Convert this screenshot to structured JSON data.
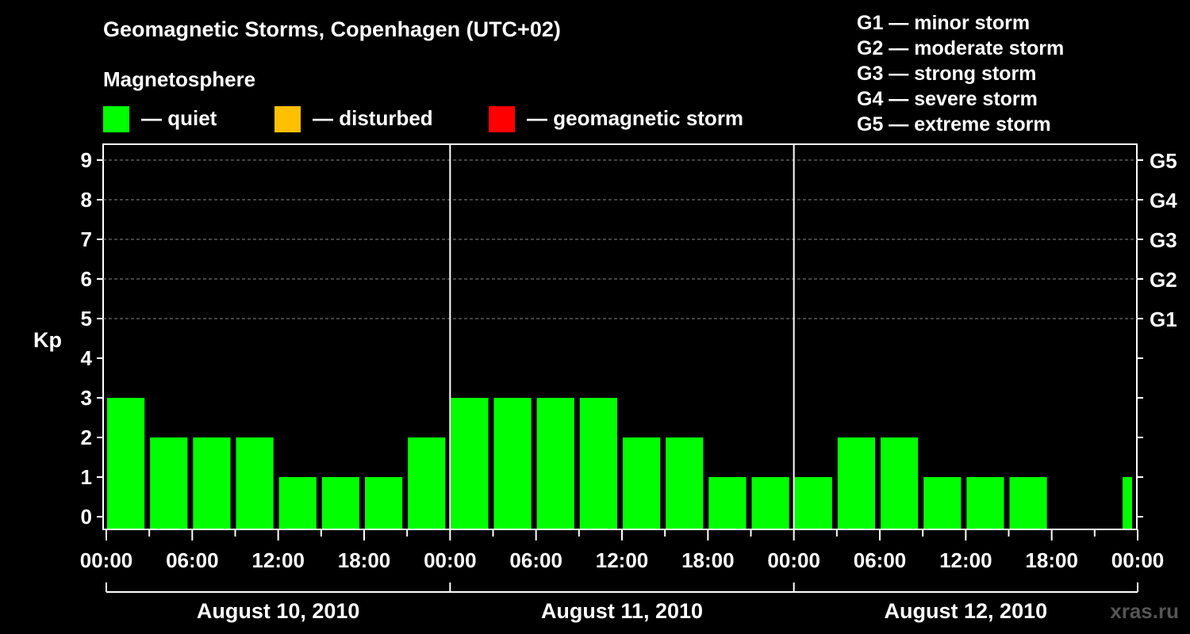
{
  "chart_data": {
    "type": "bar",
    "title": "Geomagnetic Storms, Copenhagen (UTC+02)",
    "ylabel": "Kp",
    "ylim": [
      0,
      9
    ],
    "y_ticks": [
      "0",
      "1",
      "2",
      "3",
      "4",
      "5",
      "6",
      "7",
      "8",
      "9"
    ],
    "g_ticks": [
      {
        "kp": 5,
        "label": "G1"
      },
      {
        "kp": 6,
        "label": "G2"
      },
      {
        "kp": 7,
        "label": "G3"
      },
      {
        "kp": 8,
        "label": "G4"
      },
      {
        "kp": 9,
        "label": "G5"
      }
    ],
    "x_tick_labels": [
      "00:00",
      "06:00",
      "12:00",
      "18:00",
      "00:00",
      "06:00",
      "12:00",
      "18:00",
      "00:00",
      "06:00",
      "12:00",
      "18:00",
      "00:00"
    ],
    "days": [
      "August 10, 2010",
      "August 11, 2010",
      "August 12, 2010"
    ],
    "bar_hours": 3,
    "values": [
      3,
      2,
      2,
      2,
      1,
      1,
      1,
      2,
      3,
      3,
      3,
      3,
      2,
      2,
      1,
      1,
      1,
      2,
      2,
      1,
      1,
      1,
      null,
      null
    ],
    "bar_status": [
      "quiet",
      "quiet",
      "quiet",
      "quiet",
      "quiet",
      "quiet",
      "quiet",
      "quiet",
      "quiet",
      "quiet",
      "quiet",
      "quiet",
      "quiet",
      "quiet",
      "quiet",
      "quiet",
      "quiet",
      "quiet",
      "quiet",
      "quiet",
      "quiet",
      "quiet",
      null,
      null
    ],
    "trailing_bar": {
      "value": 1,
      "status": "quiet"
    },
    "grid": "dashed horizontal at Kp 5-9"
  },
  "legend": {
    "title": "Magnetosphere",
    "items": [
      {
        "label": "— quiet",
        "color": "#00ff00"
      },
      {
        "label": "— disturbed",
        "color": "#ffc000"
      },
      {
        "label": "— geomagnetic storm",
        "color": "#ff0000"
      }
    ]
  },
  "g_scale": [
    "G1 — minor storm",
    "G2 — moderate storm",
    "G3 — strong storm",
    "G4 — severe storm",
    "G5 — extreme storm"
  ],
  "watermark": "xras.ru",
  "colors": {
    "quiet": "#00ff00",
    "disturbed": "#ffc000",
    "storm": "#ff0000",
    "background": "#000000",
    "axis": "#ffffff"
  }
}
